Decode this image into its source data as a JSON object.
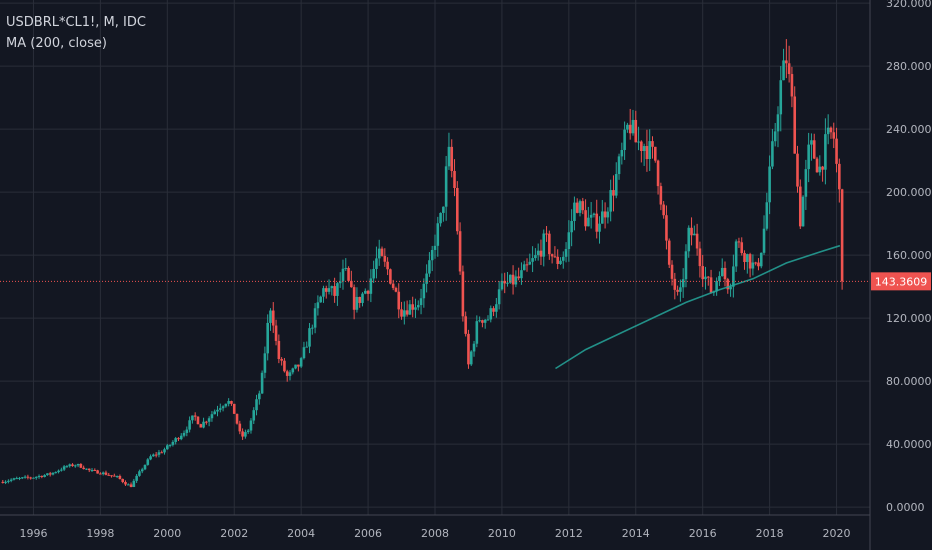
{
  "legend": {
    "symbol_line": "USDBRL*CL1!, M, IDC",
    "indicator_line": "MA (200, close)"
  },
  "colors": {
    "background": "#131722",
    "grid": "#2a2e39",
    "axis_text": "#b2b5be",
    "up": "#26a69a",
    "down": "#ef5350",
    "ma": "#26a69a",
    "last_price": "#ef5350"
  },
  "last_price": {
    "value": 143.3609,
    "label": "143.3609"
  },
  "chart_data": {
    "type": "candlestick",
    "x_axis": {
      "ticks": [
        "1996",
        "1998",
        "2000",
        "2002",
        "2004",
        "2006",
        "2008",
        "2010",
        "2012",
        "2014",
        "2016",
        "2018",
        "2020"
      ],
      "range": [
        1995.0,
        2021.0
      ]
    },
    "y_axis": {
      "ticks": [
        "0.0000",
        "40.0000",
        "80.0000",
        "120.0000",
        "160.0000",
        "200.0000",
        "240.0000",
        "280.0000",
        "320.0000"
      ],
      "range": [
        -5,
        322
      ]
    },
    "grid": true,
    "price_path": [
      [
        1995.0,
        16
      ],
      [
        1995.5,
        18
      ],
      [
        1996.0,
        19
      ],
      [
        1996.5,
        21
      ],
      [
        1997.0,
        26
      ],
      [
        1997.3,
        27
      ],
      [
        1997.7,
        23
      ],
      [
        1998.0,
        22
      ],
      [
        1998.5,
        19
      ],
      [
        1998.9,
        13
      ],
      [
        1999.2,
        23
      ],
      [
        1999.5,
        32
      ],
      [
        1999.8,
        35
      ],
      [
        2000.0,
        38
      ],
      [
        2000.5,
        48
      ],
      [
        2000.8,
        58
      ],
      [
        2001.0,
        52
      ],
      [
        2001.5,
        63
      ],
      [
        2001.8,
        68
      ],
      [
        2002.0,
        60
      ],
      [
        2002.2,
        44
      ],
      [
        2002.4,
        48
      ],
      [
        2002.8,
        76
      ],
      [
        2003.0,
        115
      ],
      [
        2003.1,
        130
      ],
      [
        2003.3,
        96
      ],
      [
        2003.6,
        82
      ],
      [
        2004.0,
        92
      ],
      [
        2004.3,
        115
      ],
      [
        2004.7,
        140
      ],
      [
        2005.0,
        135
      ],
      [
        2005.3,
        150
      ],
      [
        2005.6,
        128
      ],
      [
        2006.0,
        140
      ],
      [
        2006.3,
        160
      ],
      [
        2006.6,
        150
      ],
      [
        2007.0,
        125
      ],
      [
        2007.5,
        130
      ],
      [
        2007.8,
        148
      ],
      [
        2008.0,
        170
      ],
      [
        2008.2,
        185
      ],
      [
        2008.4,
        225
      ],
      [
        2008.6,
        200
      ],
      [
        2008.8,
        130
      ],
      [
        2009.0,
        90
      ],
      [
        2009.3,
        120
      ],
      [
        2009.6,
        120
      ],
      [
        2010.0,
        140
      ],
      [
        2010.5,
        145
      ],
      [
        2011.0,
        158
      ],
      [
        2011.3,
        170
      ],
      [
        2011.6,
        155
      ],
      [
        2011.9,
        162
      ],
      [
        2012.2,
        195
      ],
      [
        2012.5,
        183
      ],
      [
        2012.8,
        180
      ],
      [
        2013.0,
        185
      ],
      [
        2013.3,
        200
      ],
      [
        2013.6,
        225
      ],
      [
        2013.8,
        245
      ],
      [
        2014.0,
        232
      ],
      [
        2014.3,
        230
      ],
      [
        2014.6,
        220
      ],
      [
        2014.8,
        190
      ],
      [
        2015.0,
        150
      ],
      [
        2015.3,
        130
      ],
      [
        2015.6,
        175
      ],
      [
        2015.8,
        170
      ],
      [
        2016.0,
        150
      ],
      [
        2016.3,
        135
      ],
      [
        2016.5,
        152
      ],
      [
        2016.8,
        140
      ],
      [
        2017.0,
        168
      ],
      [
        2017.3,
        160
      ],
      [
        2017.6,
        150
      ],
      [
        2017.8,
        170
      ],
      [
        2018.0,
        210
      ],
      [
        2018.3,
        265
      ],
      [
        2018.5,
        285
      ],
      [
        2018.7,
        250
      ],
      [
        2018.9,
        180
      ],
      [
        2019.2,
        230
      ],
      [
        2019.5,
        215
      ],
      [
        2019.7,
        232
      ],
      [
        2019.9,
        238
      ],
      [
        2020.1,
        195
      ],
      [
        2020.2,
        143
      ]
    ],
    "ma_path": [
      [
        2011.6,
        88
      ],
      [
        2012.5,
        100
      ],
      [
        2013.5,
        110
      ],
      [
        2014.5,
        120
      ],
      [
        2015.5,
        130
      ],
      [
        2016.5,
        138
      ],
      [
        2017.5,
        145
      ],
      [
        2018.5,
        155
      ],
      [
        2019.5,
        162
      ],
      [
        2020.1,
        166
      ]
    ]
  }
}
